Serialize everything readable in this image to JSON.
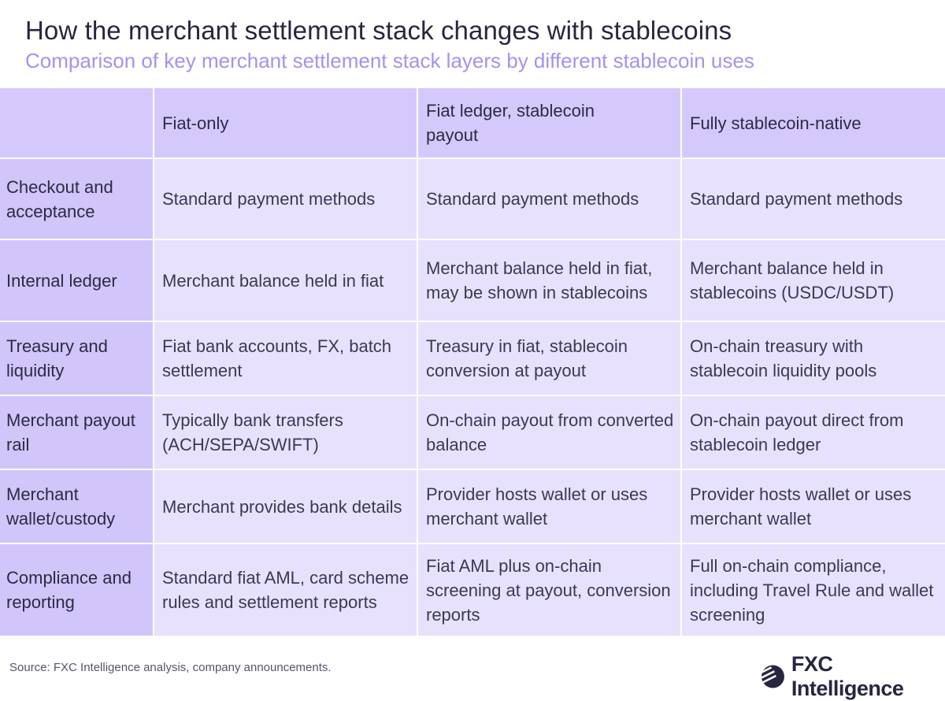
{
  "header": {
    "title": "How the merchant settlement stack changes with stablecoins",
    "subtitle": "Comparison of key merchant settlement stack layers by different stablecoin uses"
  },
  "table": {
    "columns": [
      "",
      "Fiat-only",
      "Fiat ledger, stablecoin payout",
      "Fully stablecoin-native"
    ],
    "rows": [
      {
        "label": "Checkout and acceptance",
        "cells": [
          "Standard payment methods",
          "Standard payment methods",
          "Standard payment methods"
        ]
      },
      {
        "label": "Internal ledger",
        "cells": [
          "Merchant balance held in fiat",
          "Merchant balance held in fiat, may be shown in stablecoins",
          "Merchant balance held in stablecoins (USDC/USDT)"
        ]
      },
      {
        "label": "Treasury and liquidity",
        "cells": [
          "Fiat bank accounts, FX, batch settlement",
          "Treasury in fiat, stablecoin conversion at payout",
          "On-chain treasury with stablecoin liquidity pools"
        ]
      },
      {
        "label": "Merchant payout rail",
        "cells": [
          "Typically bank transfers (ACH/SEPA/SWIFT)",
          "On-chain payout from converted balance",
          "On-chain payout direct from stablecoin ledger"
        ]
      },
      {
        "label": "Merchant wallet/custody",
        "cells": [
          "Merchant provides bank details",
          "Provider hosts wallet or uses merchant wallet",
          "Provider hosts wallet or uses merchant wallet"
        ]
      },
      {
        "label": "Compliance and reporting",
        "cells": [
          "Standard fiat AML, card scheme rules and settlement reports",
          "Fiat AML plus on-chain screening at payout, conversion reports",
          "Full on-chain compliance, including Travel Rule and wallet screening"
        ]
      }
    ]
  },
  "footer": {
    "source": "Source: FXC Intelligence analysis, company announcements.",
    "logo_text": "FXC Intelligence",
    "logo_icon": "fxc-globe-logo-icon"
  },
  "colors": {
    "header_bg": "#d5c9fc",
    "row_header_bg": "#d1c5f9",
    "cell_bg": "#e7e1fc",
    "subtitle": "#a592ec",
    "title": "#262640"
  }
}
